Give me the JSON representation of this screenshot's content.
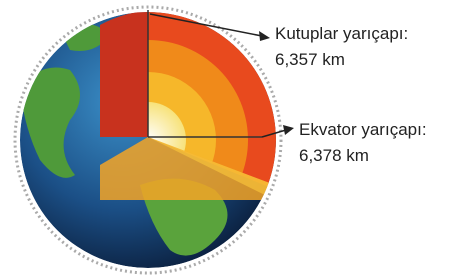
{
  "labels": [
    {
      "title": "Kutuplar yarıçapı:",
      "value": "6,357 km"
    },
    {
      "title": "Ekvator yarıçapı:",
      "value": "6,378 km"
    }
  ]
}
